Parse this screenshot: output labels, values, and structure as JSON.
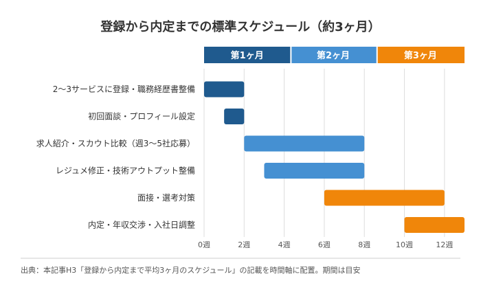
{
  "chart_data": {
    "type": "bar",
    "orientation": "horizontal-gantt",
    "title": "登録から内定までの標準スケジュール（約3ヶ月）",
    "xlabel": "",
    "ylabel": "",
    "x_unit": "週",
    "xlim": [
      0,
      13
    ],
    "x_ticks": [
      0,
      2,
      4,
      6,
      8,
      10,
      12
    ],
    "tick_labels": [
      "0週",
      "2週",
      "4週",
      "6週",
      "8週",
      "10週",
      "12週"
    ],
    "grid": true,
    "phases": [
      {
        "label": "第1ヶ月",
        "start": 0,
        "end": 4.3,
        "color": "#1f5a8e"
      },
      {
        "label": "第2ヶ月",
        "start": 4.3,
        "end": 8.6,
        "color": "#4590d2"
      },
      {
        "label": "第3ヶ月",
        "start": 8.6,
        "end": 13,
        "color": "#f0860a"
      }
    ],
    "categories": [
      "2〜3サービスに登録・職務経歴書整備",
      "初回面談・プロフィール設定",
      "求人紹介・スカウト比較（週3〜5社応募）",
      "レジュメ修正・技術アウトプット整備",
      "面接・選考対策",
      "内定・年収交渉・入社日調整"
    ],
    "tasks": [
      {
        "start": 0,
        "end": 2,
        "color": "#1f5a8e"
      },
      {
        "start": 1,
        "end": 2,
        "color": "#1f5a8e"
      },
      {
        "start": 2,
        "end": 8,
        "color": "#4590d2"
      },
      {
        "start": 3,
        "end": 8,
        "color": "#4590d2"
      },
      {
        "start": 6,
        "end": 12,
        "color": "#f0860a"
      },
      {
        "start": 10,
        "end": 13,
        "color": "#f0860a"
      }
    ],
    "caption": "出典：本記事H3「登録から内定まで平均3ヶ月のスケジュール」の記載を時間軸に配置。期間は目安"
  }
}
